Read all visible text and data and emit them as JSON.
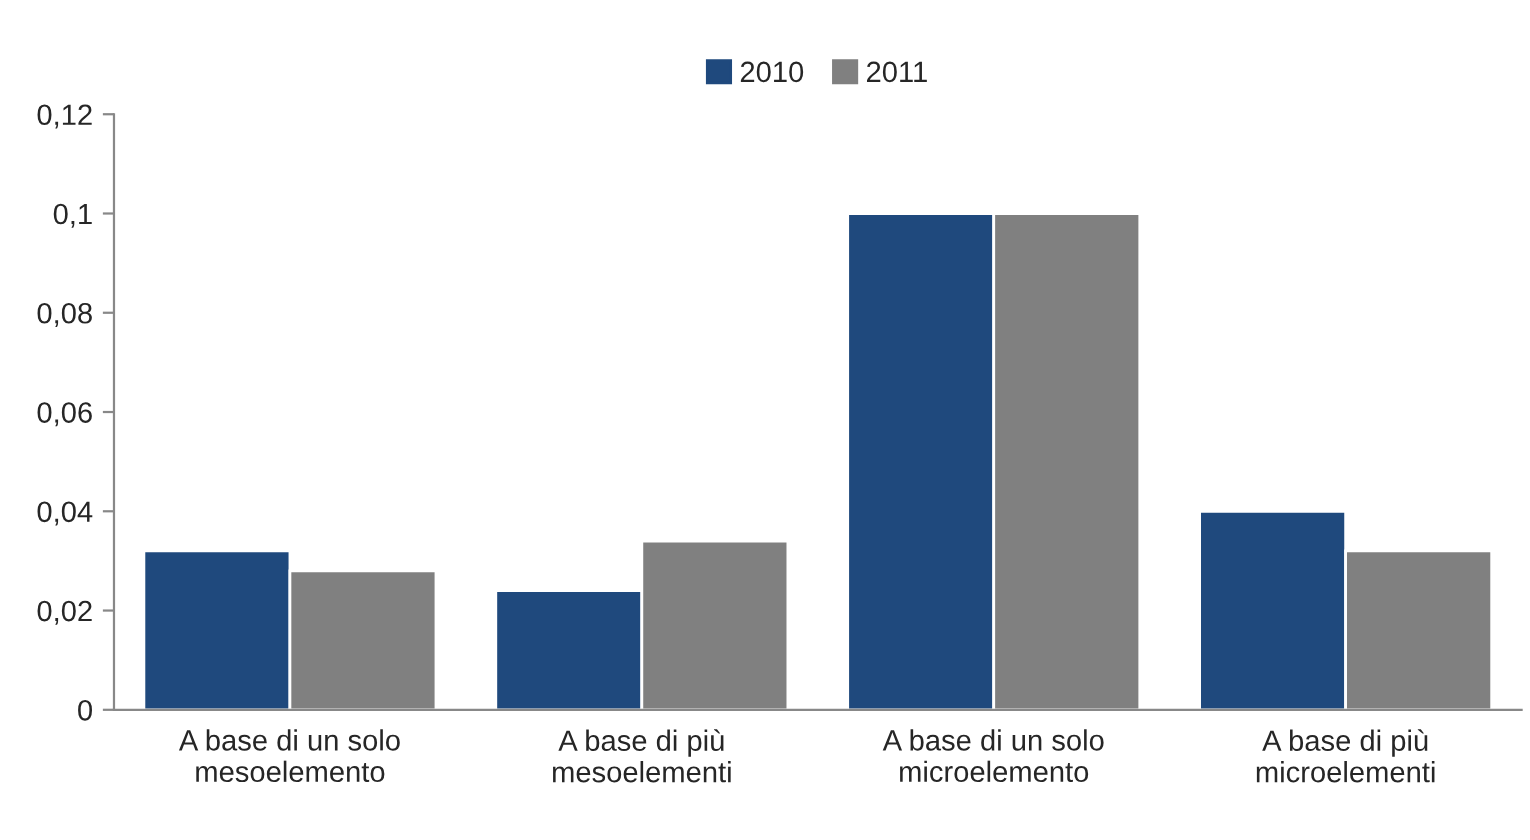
{
  "chart_data": {
    "type": "bar",
    "categories": [
      "A base di un solo\nmesoelemento",
      "A base di più\nmesoelementi",
      "A base di un solo\nmicroelemento",
      "A base di più\nmicroelementi"
    ],
    "series": [
      {
        "name": "2010",
        "color": "#1f497d",
        "values": [
          0.032,
          0.024,
          0.1,
          0.04
        ]
      },
      {
        "name": "2011",
        "color": "#808080",
        "values": [
          0.028,
          0.034,
          0.1,
          0.032
        ]
      }
    ],
    "ylim": [
      0,
      0.12
    ],
    "yticks": [
      {
        "value": 0,
        "label": "0"
      },
      {
        "value": 0.02,
        "label": "0,02"
      },
      {
        "value": 0.04,
        "label": "0,04"
      },
      {
        "value": 0.06,
        "label": "0,06"
      },
      {
        "value": 0.08,
        "label": "0,08"
      },
      {
        "value": 0.1,
        "label": "0,1"
      },
      {
        "value": 0.12,
        "label": "0,12"
      }
    ],
    "grid": false,
    "legend": "top"
  }
}
